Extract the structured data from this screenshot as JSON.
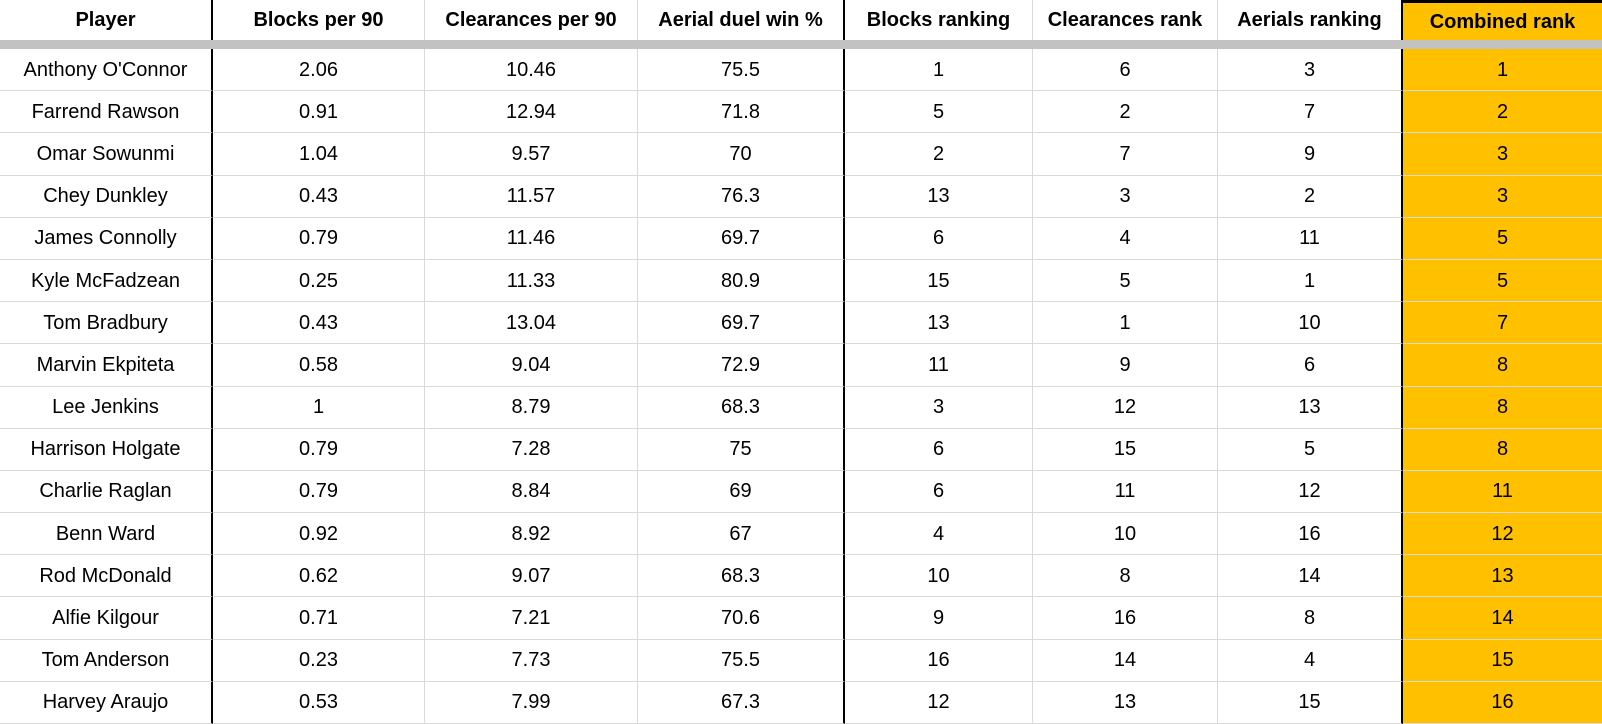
{
  "colors": {
    "highlight": "#FFC000",
    "band": "#C2C2C2",
    "gridline": "#D9D9D9",
    "border_strong": "#000000",
    "text": "#000000",
    "background": "#FFFFFF"
  },
  "chart_data": {
    "type": "table",
    "title": "",
    "columns": [
      "Player",
      "Blocks per 90",
      "Clearances per 90",
      "Aerial duel win %",
      "Blocks ranking",
      "Clearances rank",
      "Aerials ranking",
      "Combined rank"
    ],
    "highlight_column": "Combined rank",
    "rows": [
      [
        "Anthony O'Connor",
        "2.06",
        "10.46",
        "75.5",
        "1",
        "6",
        "3",
        "1"
      ],
      [
        "Farrend Rawson",
        "0.91",
        "12.94",
        "71.8",
        "5",
        "2",
        "7",
        "2"
      ],
      [
        "Omar Sowunmi",
        "1.04",
        "9.57",
        "70",
        "2",
        "7",
        "9",
        "3"
      ],
      [
        "Chey Dunkley",
        "0.43",
        "11.57",
        "76.3",
        "13",
        "3",
        "2",
        "3"
      ],
      [
        "James Connolly",
        "0.79",
        "11.46",
        "69.7",
        "6",
        "4",
        "11",
        "5"
      ],
      [
        "Kyle McFadzean",
        "0.25",
        "11.33",
        "80.9",
        "15",
        "5",
        "1",
        "5"
      ],
      [
        "Tom Bradbury",
        "0.43",
        "13.04",
        "69.7",
        "13",
        "1",
        "10",
        "7"
      ],
      [
        "Marvin Ekpiteta",
        "0.58",
        "9.04",
        "72.9",
        "11",
        "9",
        "6",
        "8"
      ],
      [
        "Lee Jenkins",
        "1",
        "8.79",
        "68.3",
        "3",
        "12",
        "13",
        "8"
      ],
      [
        "Harrison Holgate",
        "0.79",
        "7.28",
        "75",
        "6",
        "15",
        "5",
        "8"
      ],
      [
        "Charlie Raglan",
        "0.79",
        "8.84",
        "69",
        "6",
        "11",
        "12",
        "11"
      ],
      [
        "Benn Ward",
        "0.92",
        "8.92",
        "67",
        "4",
        "10",
        "16",
        "12"
      ],
      [
        "Rod McDonald",
        "0.62",
        "9.07",
        "68.3",
        "10",
        "8",
        "14",
        "13"
      ],
      [
        "Alfie Kilgour",
        "0.71",
        "7.21",
        "70.6",
        "9",
        "16",
        "8",
        "14"
      ],
      [
        "Tom Anderson",
        "0.23",
        "7.73",
        "75.5",
        "16",
        "14",
        "4",
        "15"
      ],
      [
        "Harvey Araujo",
        "0.53",
        "7.99",
        "67.3",
        "12",
        "13",
        "15",
        "16"
      ]
    ]
  }
}
